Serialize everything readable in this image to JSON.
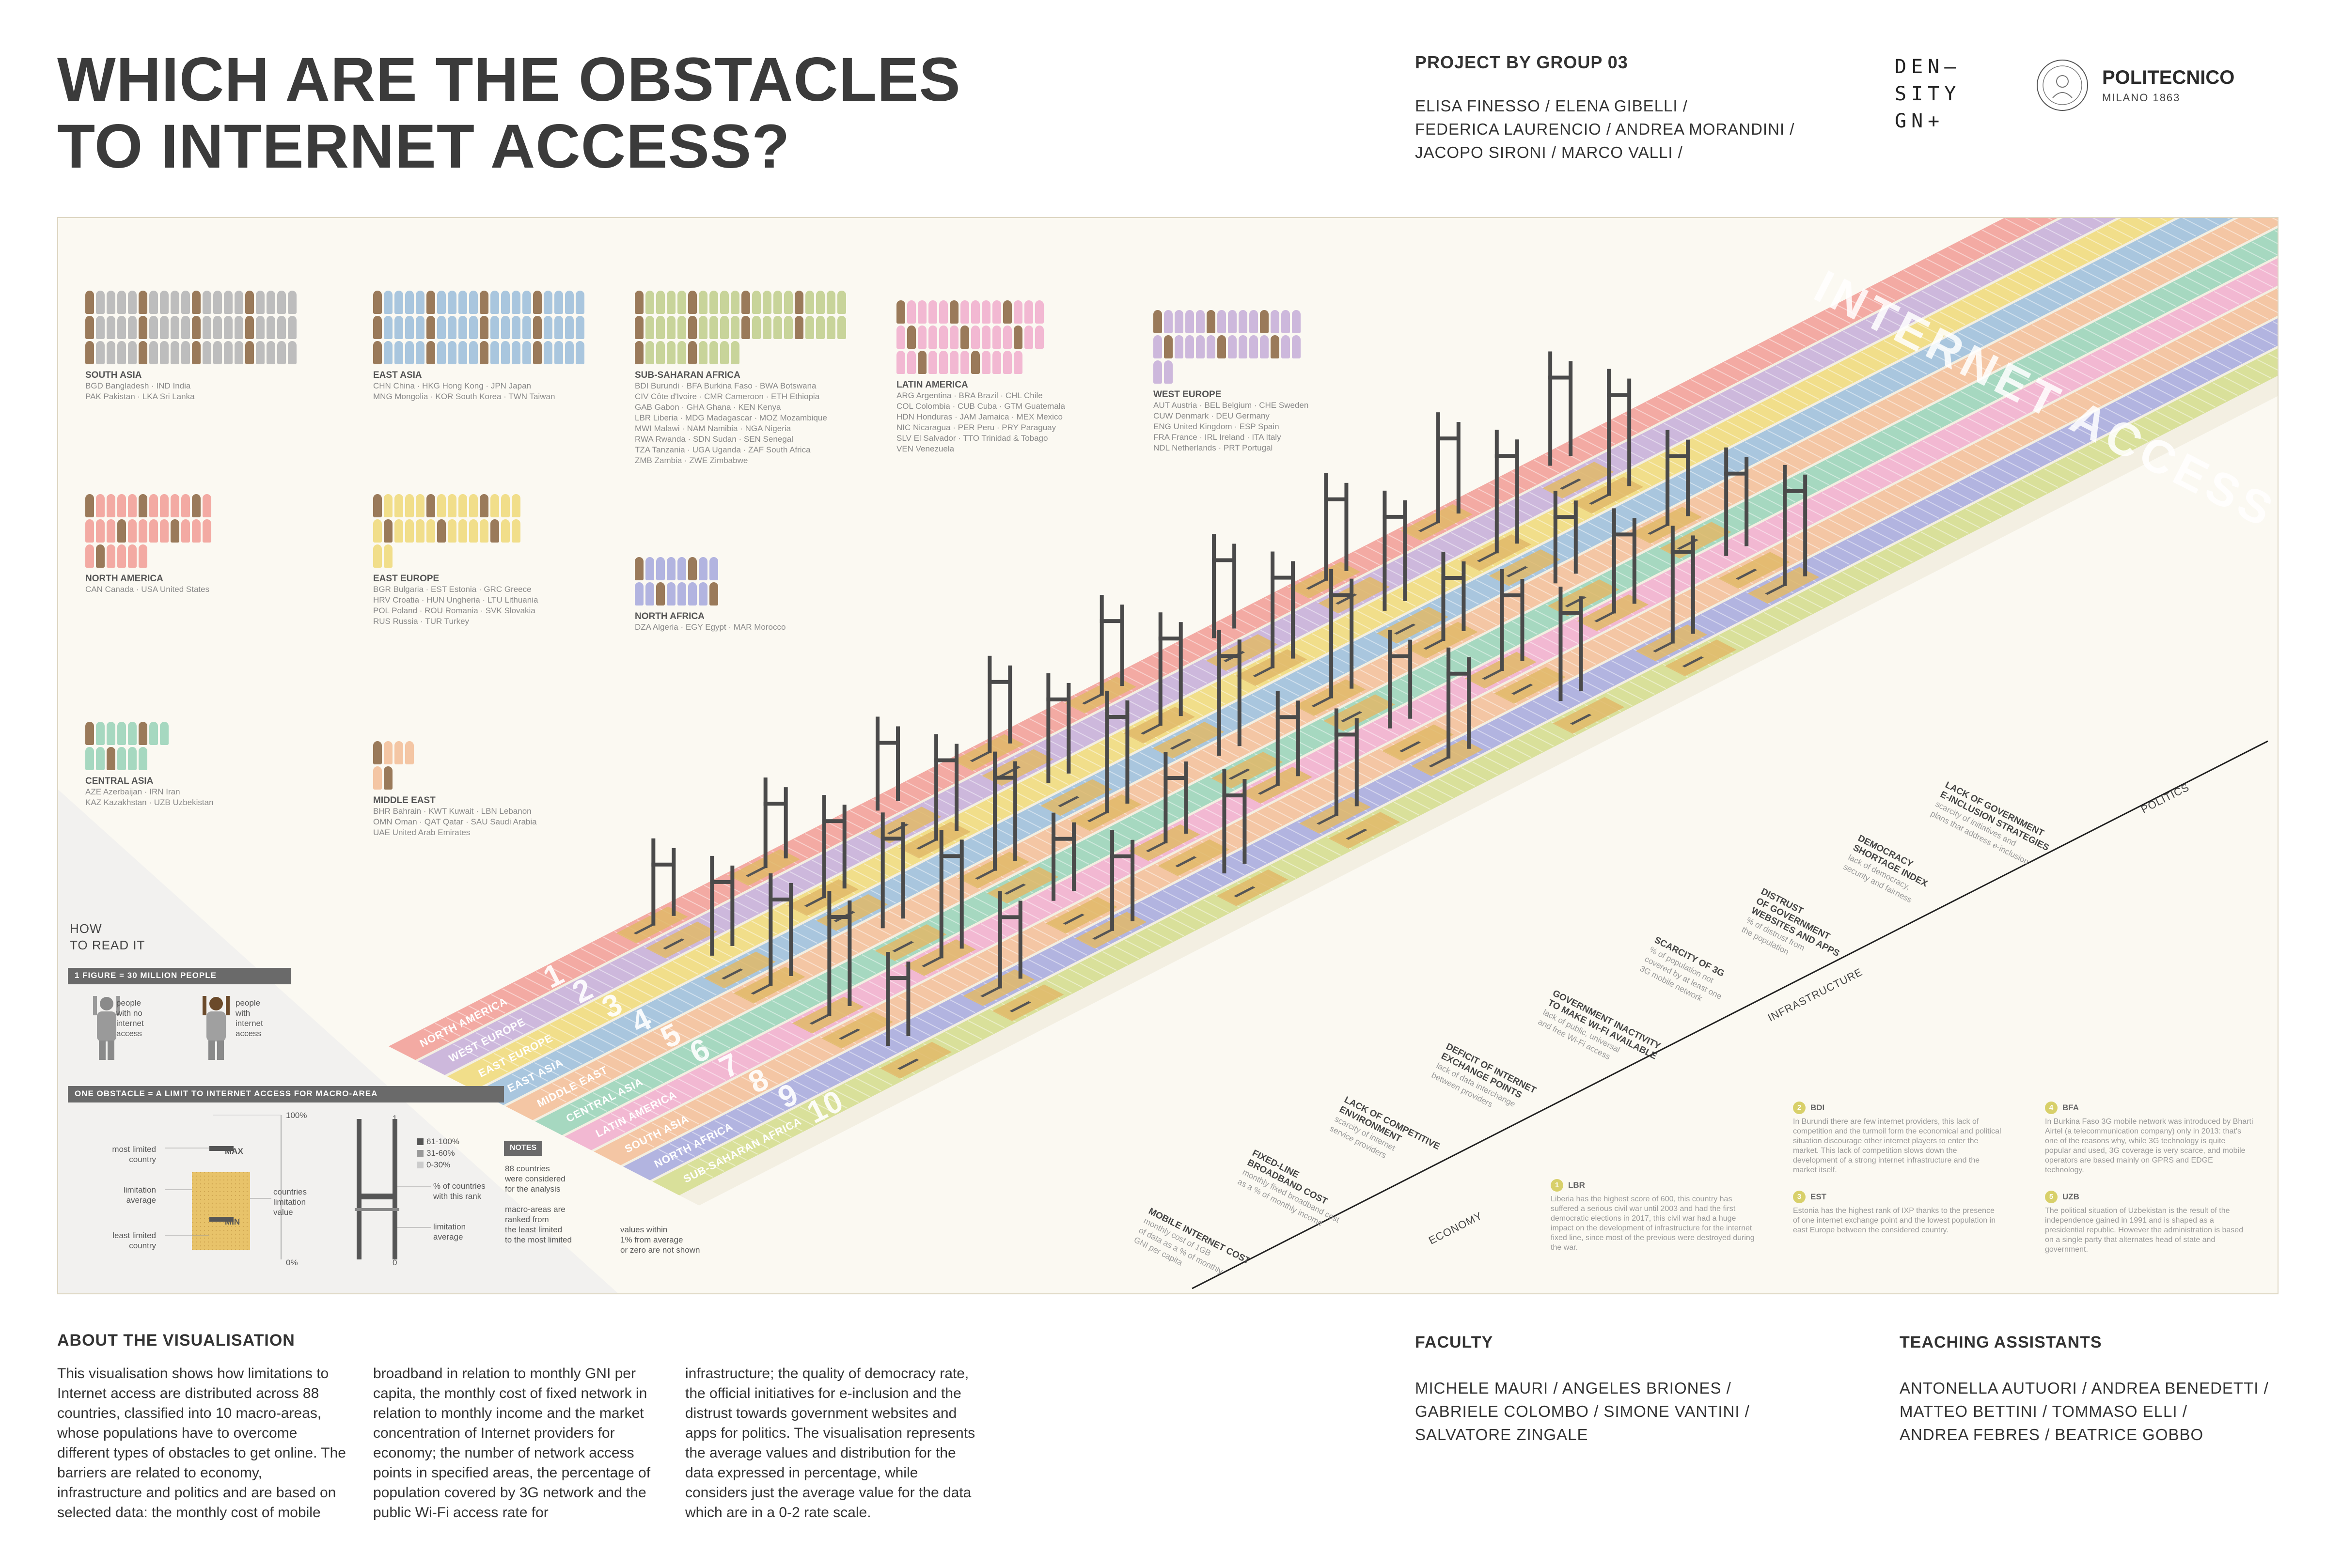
{
  "header": {
    "title_line1": "WHICH ARE THE OBSTACLES",
    "title_line2": "TO INTERNET ACCESS?",
    "project_label": "PROJECT BY GROUP 03",
    "members": [
      "ELISA FINESSO / ELENA GIBELLI /",
      "FEDERICA LAURENCIO / ANDREA MORANDINI /",
      "JACOPO SIRONI / MARCO VALLI /"
    ],
    "density_logo": [
      "DEN–",
      "SITY",
      "GN+"
    ],
    "polimi_name": "POLITECNICO",
    "polimi_sub": "MILANO 1863"
  },
  "regions": [
    {
      "name": "SOUTH ASIA",
      "countries": [
        "BGD Bangladesh · IND India",
        "PAK Pakistan · LKA Sri Lanka"
      ],
      "color": "#bdbdbd"
    },
    {
      "name": "EAST ASIA",
      "countries": [
        "CHN China · HKG Hong Kong · JPN Japan",
        "MNG Mongolia · KOR South Korea · TWN Taiwan"
      ],
      "color": "#a9c6de"
    },
    {
      "name": "SUB-SAHARAN AFRICA",
      "countries": [
        "BDI Burundi · BFA Burkina Faso · BWA Botswana",
        "CIV Côte d'Ivoire · CMR Cameroon · ETH Ethiopia",
        "GAB Gabon · GHA Ghana · KEN Kenya",
        "LBR Liberia · MDG Madagascar · MOZ Mozambique",
        "MWI Malawi · NAM Namibia · NGA Nigeria",
        "RWA Rwanda · SDN Sudan · SEN Senegal",
        "TZA Tanzania · UGA Uganda · ZAF South Africa",
        "ZMB Zambia · ZWE Zimbabwe"
      ],
      "color": "#c8d49a"
    },
    {
      "name": "LATIN AMERICA",
      "countries": [
        "ARG Argentina · BRA Brazil · CHL Chile",
        "COL Colombia · CUB Cuba · GTM Guatemala",
        "HDN Honduras · JAM Jamaica · MEX Mexico",
        "NIC Nicaragua · PER Peru · PRY Paraguay",
        "SLV El Salvador · TTO Trinidad & Tobago",
        "VEN Venezuela"
      ],
      "color": "#f2b8d2"
    },
    {
      "name": "WEST EUROPE",
      "countries": [
        "AUT Austria · BEL Belgium · CHE Sweden",
        "CUW Denmark · DEU Germany",
        "ENG United Kingdom · ESP Spain",
        "FRA France · IRL Ireland · ITA Italy",
        "NDL Netherlands · PRT Portugal"
      ],
      "color": "#cdb8dc"
    },
    {
      "name": "NORTH AMERICA",
      "countries": [
        "CAN Canada · USA United States"
      ],
      "color": "#f3aaa3"
    },
    {
      "name": "EAST EUROPE",
      "countries": [
        "BGR Bulgaria · EST Estonia · GRC Greece",
        "HRV Croatia · HUN Ungheria · LTU Lithuania",
        "POL Poland · ROU Romania · SVK Slovakia",
        "RUS Russia · TUR Turkey"
      ],
      "color": "#f1de8a"
    },
    {
      "name": "NORTH AFRICA",
      "countries": [
        "DZA Algeria · EGY Egypt · MAR Morocco"
      ],
      "color": "#b2b4e0"
    },
    {
      "name": "CENTRAL ASIA",
      "countries": [
        "AZE Azerbaijan · IRN Iran",
        "KAZ Kazakhstan · UZB Uzbekistan"
      ],
      "color": "#a6d8c0"
    },
    {
      "name": "MIDDLE EAST",
      "countries": [
        "BHR Bahrain · KWT Kuwait · LBN Lebanon",
        "OMN Oman · QAT Qatar · SAU Saudi Arabia",
        "UAE United Arab Emirates"
      ],
      "color": "#f4c6a4"
    }
  ],
  "lanes": [
    {
      "label": "NORTH AMERICA",
      "rank": "1",
      "color": "#f3aaa3"
    },
    {
      "label": "WEST EUROPE",
      "rank": "2",
      "color": "#cdb8dc"
    },
    {
      "label": "EAST EUROPE",
      "rank": "3",
      "color": "#f1de8a"
    },
    {
      "label": "EAST ASIA",
      "rank": "4",
      "color": "#a9c6de"
    },
    {
      "label": "MIDDLE EAST",
      "rank": "5",
      "color": "#f4c6a4"
    },
    {
      "label": "CENTRAL ASIA",
      "rank": "6",
      "color": "#a6d8c0"
    },
    {
      "label": "LATIN AMERICA",
      "rank": "7",
      "color": "#f2b8d2"
    },
    {
      "label": "SOUTH ASIA",
      "rank": "8",
      "color": "#f4c6a4"
    },
    {
      "label": "NORTH AFRICA",
      "rank": "9",
      "color": "#b2b4e0"
    },
    {
      "label": "SUB-SAHARAN AFRICA",
      "rank": "10",
      "color": "#d9e09a"
    }
  ],
  "internet_access_label": "INTERNET ACCESS",
  "obstacles": [
    {
      "title": [
        "MOBILE INTERNET COST"
      ],
      "desc": [
        "monthly cost of 1GB",
        "of data as a % of monthly",
        "GNI per capita"
      ]
    },
    {
      "title": [
        "FIXED-LINE",
        "BROADBAND COST"
      ],
      "desc": [
        "monthly fixed broadband cost",
        "as a % of monthly income"
      ]
    },
    {
      "title": [
        "LACK OF COMPETITIVE",
        "ENVIRONMENT"
      ],
      "desc": [
        "scarcity of internet",
        "service providers"
      ]
    },
    {
      "title": [
        "DEFICIT OF INTERNET",
        "EXCHANGE POINTS"
      ],
      "desc": [
        "lack of data interchange",
        "between providers"
      ]
    },
    {
      "title": [
        "GOVERNMENT INACTIVITY",
        "TO MAKE WI-FI AVAILABLE"
      ],
      "desc": [
        "lack of public, universal",
        "and free Wi-Fi access"
      ]
    },
    {
      "title": [
        "SCARCITY OF 3G"
      ],
      "desc": [
        "% of population not",
        "covered by at least one",
        "3G mobile network"
      ]
    },
    {
      "title": [
        "DISTRUST",
        "OF GOVERNMENT",
        "WEBSITES AND APPS"
      ],
      "desc": [
        "% of distrust from",
        "the population"
      ]
    },
    {
      "title": [
        "DEMOCRACY",
        "SHORTAGE INDEX"
      ],
      "desc": [
        "lack of democracy,",
        "security and fairness"
      ]
    },
    {
      "title": [
        "LACK OF GOVERNMENT",
        "E-INCLUSION STRATEGIES"
      ],
      "desc": [
        "scarcity of initiatives and",
        "plans that address e-inclusion"
      ]
    }
  ],
  "categories": [
    "ECONOMY",
    "INFRASTRUCTURE",
    "POLITICS"
  ],
  "facts": [
    {
      "num": "1",
      "code": "LBR",
      "text": "Liberia has the highest score of 600, this country has suffered a serious civil war until 2003 and had the first democratic elections in 2017, this civil war had a huge impact on the development of infrastructure for the internet fixed line, since most of the previous were destroyed during the war."
    },
    {
      "num": "2",
      "code": "BDI",
      "text": "In Burundi there are few internet providers, this lack of competition and the turmoil form the economical and political situation discourage other internet players to enter the market. This lack of competition slows down the development of a strong internet infrastructure and the market itself."
    },
    {
      "num": "3",
      "code": "EST",
      "text": "Estonia has the highest rank of IXP thanks to the presence of one internet exchange point and the lowest population in east Europe between the considered country."
    },
    {
      "num": "4",
      "code": "BFA",
      "text": "In Burkina Faso 3G mobile network was introduced by Bharti Airtel (a telecommunication company) only in 2013: that's one of the reasons why, while 3G technology is quite popular and used, 3G coverage is very scarce, and mobile operators are based mainly on GPRS and EDGE technology."
    },
    {
      "num": "5",
      "code": "UZB",
      "text": "The political situation of Uzbekistan is the result of the independence gained in 1991 and is shaped as a presidential republic. However the administration is based on a single party that alternates head of state and government."
    }
  ],
  "howto": {
    "title": [
      "HOW",
      "TO READ IT"
    ],
    "figure_label": "1 FIGURE  =  30 MILLION PEOPLE",
    "no_access": [
      "people",
      "with no",
      "internet",
      "access"
    ],
    "with_access": [
      "people",
      "with",
      "internet",
      "access"
    ],
    "obstacle_label": "ONE OBSTACLE  =  A LIMIT TO INTERNET ACCESS FOR MACRO-AREA",
    "most_limited": [
      "most limited",
      "country"
    ],
    "limitation_avg": [
      "limitation",
      "average"
    ],
    "least_limited": [
      "least limited",
      "country"
    ],
    "countries_value": [
      "countries",
      "limitation",
      "value"
    ],
    "max": "MAX",
    "min": "MIN",
    "pct_100": "100%",
    "pct_0": "0%",
    "legend": [
      "61-100%",
      "31-60%",
      "0-30%"
    ],
    "pct_countries": [
      "% of countries",
      "with this rank"
    ],
    "limitation_average": [
      "limitation",
      "average"
    ],
    "scale_1": "1",
    "scale_0": "0",
    "notes_tag": "NOTES",
    "note1": [
      "88 countries",
      "were considered",
      "for the analysis"
    ],
    "note2": [
      "macro-areas are",
      "ranked from",
      "the least limited",
      "to the most limited"
    ],
    "note3": [
      "values within",
      "1% from average",
      "or zero are not shown"
    ]
  },
  "about": {
    "heading": "ABOUT THE VISUALISATION",
    "col1": "This visualisation shows how limitations to Internet access are distributed across 88 countries, classified into 10 macro-areas, whose populations have to overcome different types of obstacles to get online. The barriers are related to economy, infrastructure and politics and are based on selected data: the monthly cost of mobile",
    "col2": "broadband in relation to monthly GNI per capita, the monthly cost of fixed network in relation to monthly income and the market concentration of Internet providers for economy; the number of network access points in specified areas, the percentage of population covered by 3G network and the public Wi-Fi access rate for",
    "col3": "infrastructure; the quality of democracy rate, the official initiatives for e-inclusion and the distrust towards government websites and apps for politics. The visualisation represents the average values and distribution for the data expressed in percentage, while considers just the average value for the data which are in a 0-2 rate scale."
  },
  "faculty": {
    "heading": "FACULTY",
    "lines": [
      "MICHELE MAURI / ANGELES BRIONES /",
      "GABRIELE COLOMBO / SIMONE VANTINI /",
      "SALVATORE ZINGALE"
    ]
  },
  "assistants": {
    "heading": "TEACHING ASSISTANTS",
    "lines": [
      "ANTONELLA AUTUORI / ANDREA BENEDETTI /",
      "MATTEO BETTINI / TOMMASO ELLI /",
      "ANDREA FEBRES / BEATRICE GOBBO"
    ]
  }
}
